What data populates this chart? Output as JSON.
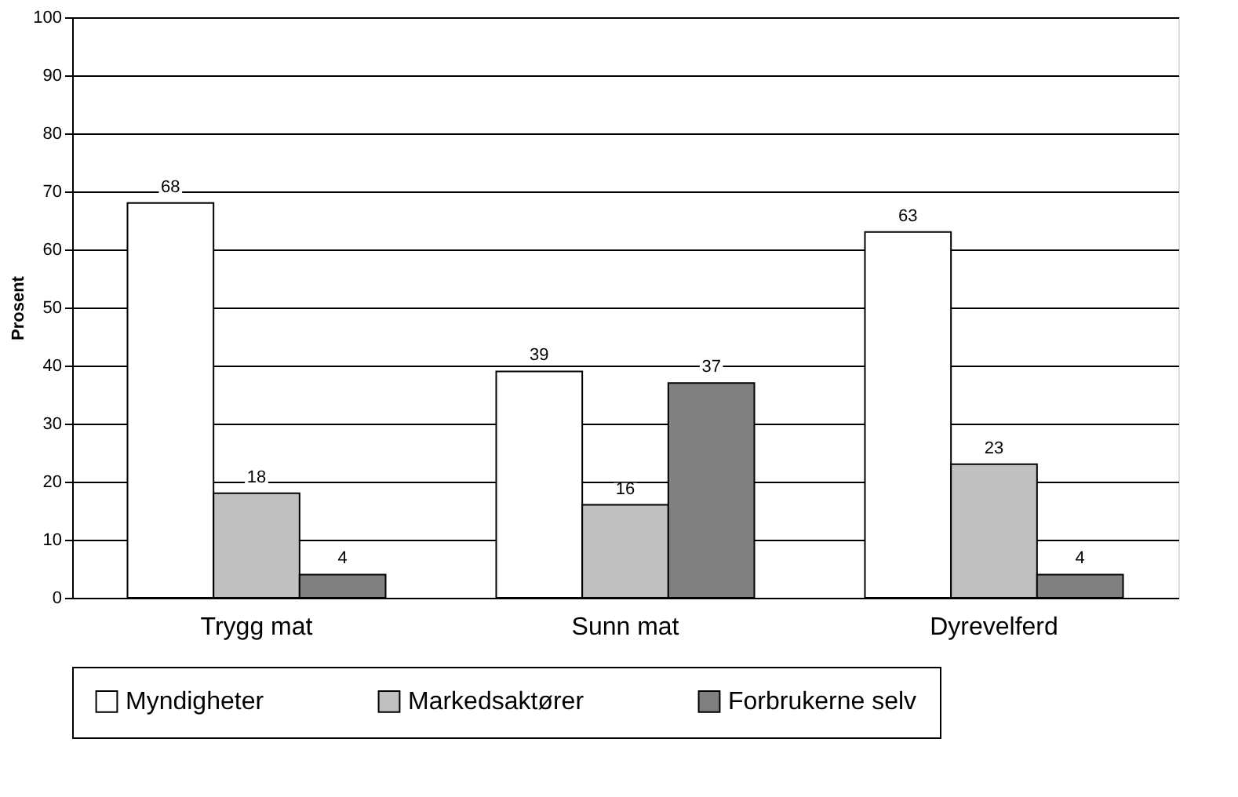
{
  "chart_data": {
    "type": "bar",
    "ylabel": "Prosent",
    "categories": [
      "Trygg mat",
      "Sunn mat",
      "Dyrevelferd"
    ],
    "series": [
      {
        "name": "Myndigheter",
        "color": "#ffffff",
        "values": [
          68,
          39,
          63
        ]
      },
      {
        "name": "Markedsaktører",
        "color": "#c0c0c0",
        "values": [
          18,
          16,
          23
        ]
      },
      {
        "name": "Forbrukerne selv",
        "color": "#808080",
        "values": [
          4,
          37,
          4
        ]
      }
    ],
    "ylim": [
      0,
      100
    ],
    "yticks": [
      0,
      10,
      20,
      30,
      40,
      50,
      60,
      70,
      80,
      90,
      100
    ],
    "grid": "y",
    "legend": "bottom",
    "data_labels": true
  }
}
